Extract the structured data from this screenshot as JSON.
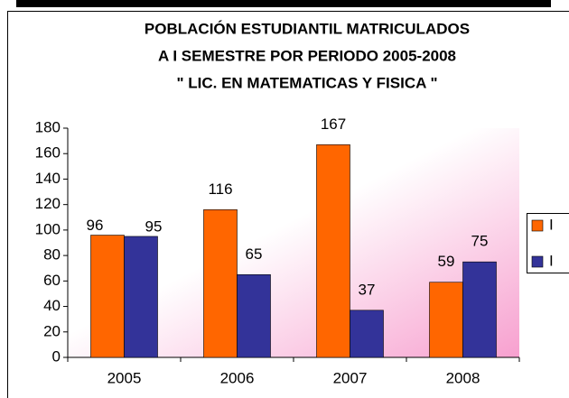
{
  "chart_data": {
    "type": "bar",
    "title": [
      "POBLACIÓN ESTUDIANTIL  MATRICULADOS",
      "A I SEMESTRE  POR PERIODO 2005-2008",
      "\" LIC. EN MATEMATICAS Y FISICA \""
    ],
    "categories": [
      "2005",
      "2006",
      "2007",
      "2008"
    ],
    "series": [
      {
        "name": "I",
        "color": "#ff6600",
        "values": [
          96,
          116,
          167,
          59
        ]
      },
      {
        "name": "I",
        "color": "#333399",
        "values": [
          95,
          65,
          37,
          75
        ]
      }
    ],
    "ylim": [
      0,
      180
    ],
    "yticks": [
      0,
      20,
      40,
      60,
      80,
      100,
      120,
      140,
      160,
      180
    ],
    "legend": "right"
  }
}
